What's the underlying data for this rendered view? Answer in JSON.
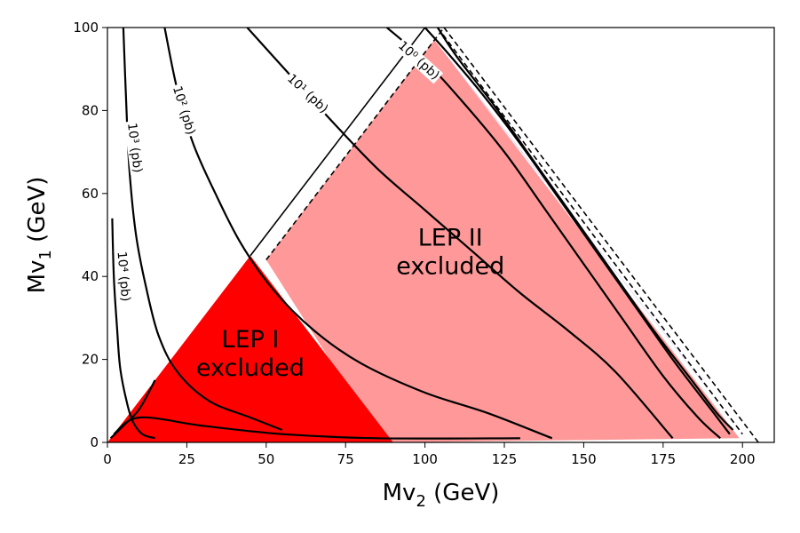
{
  "chart_data": {
    "type": "contour",
    "xlabel": {
      "base": "Mv",
      "sub": "2",
      "suffix": " (GeV)"
    },
    "ylabel": {
      "base": "Mv",
      "sub": "1",
      "suffix": " (GeV)"
    },
    "xlim": [
      0,
      210
    ],
    "ylim": [
      0,
      100
    ],
    "xticks": [
      0,
      25,
      50,
      75,
      100,
      125,
      150,
      175,
      200
    ],
    "yticks": [
      0,
      20,
      40,
      60,
      80,
      100
    ],
    "grid": false,
    "colors": {
      "lep1": "#ff0000",
      "lep2": "#ff9999",
      "purple": "#7b4fd6",
      "contour": "#000000"
    },
    "regions": [
      {
        "name": "lep1",
        "line1": "LEP I",
        "line2": "excluded",
        "polygon": [
          [
            0,
            0
          ],
          [
            45,
            45
          ],
          [
            90,
            0
          ]
        ]
      },
      {
        "name": "lep2",
        "line1": "LEP II",
        "line2": "excluded",
        "polygon": [
          [
            50,
            44
          ],
          [
            103,
            97
          ],
          [
            199,
            1
          ],
          [
            90,
            0
          ],
          [
            70,
            20
          ]
        ]
      },
      {
        "name": "purple",
        "polygon": [
          [
            104,
            96
          ],
          [
            108,
            92
          ],
          [
            190,
            12
          ],
          [
            188,
            14
          ],
          [
            106,
            94
          ]
        ]
      }
    ],
    "boundary_lines": [
      {
        "style": "solid",
        "points": [
          [
            45,
            45
          ],
          [
            100,
            100
          ]
        ]
      },
      {
        "style": "dashed",
        "points": [
          [
            50,
            44
          ],
          [
            106,
            100
          ]
        ]
      },
      {
        "style": "dashed",
        "points": [
          [
            106,
            100
          ],
          [
            205,
            0
          ]
        ]
      },
      {
        "style": "dashed",
        "points": [
          [
            104,
            100
          ],
          [
            200,
            2
          ]
        ]
      }
    ],
    "contours": [
      {
        "label": "10⁴ (pb)",
        "points": [
          [
            1.5,
            54
          ],
          [
            2,
            40
          ],
          [
            3,
            28
          ],
          [
            4,
            18
          ],
          [
            6,
            10
          ],
          [
            8,
            5
          ],
          [
            11,
            2
          ],
          [
            15,
            1
          ]
        ]
      },
      {
        "label": "10³ (pb)",
        "points": [
          [
            5,
            100
          ],
          [
            6,
            80
          ],
          [
            7,
            65
          ],
          [
            9,
            50
          ],
          [
            12,
            38
          ],
          [
            16,
            26
          ],
          [
            22,
            17
          ],
          [
            32,
            10
          ],
          [
            45,
            6
          ],
          [
            55,
            3
          ]
        ]
      },
      {
        "label": "10² (pb)",
        "points": [
          [
            18,
            100
          ],
          [
            22,
            85
          ],
          [
            27,
            72
          ],
          [
            34,
            60
          ],
          [
            42,
            48
          ],
          [
            52,
            37
          ],
          [
            65,
            27
          ],
          [
            80,
            19
          ],
          [
            100,
            12
          ],
          [
            120,
            7
          ],
          [
            140,
            1
          ]
        ]
      },
      {
        "label": "10¹ (pb)",
        "points": [
          [
            44,
            100
          ],
          [
            57,
            89
          ],
          [
            70,
            78
          ],
          [
            85,
            66
          ],
          [
            100,
            56
          ],
          [
            115,
            46
          ],
          [
            130,
            36
          ],
          [
            145,
            27
          ],
          [
            160,
            17
          ],
          [
            178,
            1
          ]
        ]
      },
      {
        "label": "10⁰ (pb)",
        "points": [
          [
            88,
            100
          ],
          [
            100,
            92
          ],
          [
            112,
            82
          ],
          [
            125,
            70
          ],
          [
            138,
            56
          ],
          [
            150,
            43
          ],
          [
            162,
            30
          ],
          [
            175,
            16
          ],
          [
            186,
            6
          ],
          [
            193,
            1
          ]
        ]
      },
      {
        "label": "",
        "points": [
          [
            100,
            100
          ],
          [
            107,
            94
          ],
          [
            118,
            84
          ],
          [
            130,
            72
          ],
          [
            142,
            59
          ],
          [
            154,
            46
          ],
          [
            166,
            33
          ],
          [
            178,
            20
          ],
          [
            190,
            8
          ],
          [
            196,
            2
          ]
        ]
      },
      {
        "label": "",
        "points": [
          [
            104,
            100
          ],
          [
            110,
            93
          ],
          [
            122,
            81
          ],
          [
            135,
            67
          ],
          [
            148,
            53
          ],
          [
            160,
            40
          ],
          [
            172,
            27
          ],
          [
            184,
            15
          ],
          [
            192,
            7
          ],
          [
            197,
            3
          ]
        ]
      },
      {
        "label": "",
        "points": [
          [
            1,
            1
          ],
          [
            5,
            4
          ],
          [
            10,
            8
          ],
          [
            15,
            15
          ]
        ]
      },
      {
        "label": "",
        "points": [
          [
            2,
            2
          ],
          [
            10,
            6
          ],
          [
            30,
            4
          ],
          [
            55,
            2
          ],
          [
            85,
            1
          ],
          [
            130,
            1
          ]
        ]
      }
    ],
    "contour_labels": [
      {
        "text": "10⁴ (pb)",
        "x": 5,
        "y": 40,
        "angle": 85
      },
      {
        "text": "10³ (pb)",
        "x": 8.5,
        "y": 71,
        "angle": 83
      },
      {
        "text": "10² (pb)",
        "x": 24,
        "y": 80,
        "angle": 73
      },
      {
        "text": "10¹ (pb)",
        "x": 63,
        "y": 84,
        "angle": 43
      },
      {
        "text": "10⁰ (pb)",
        "x": 98,
        "y": 92,
        "angle": 42
      }
    ]
  }
}
